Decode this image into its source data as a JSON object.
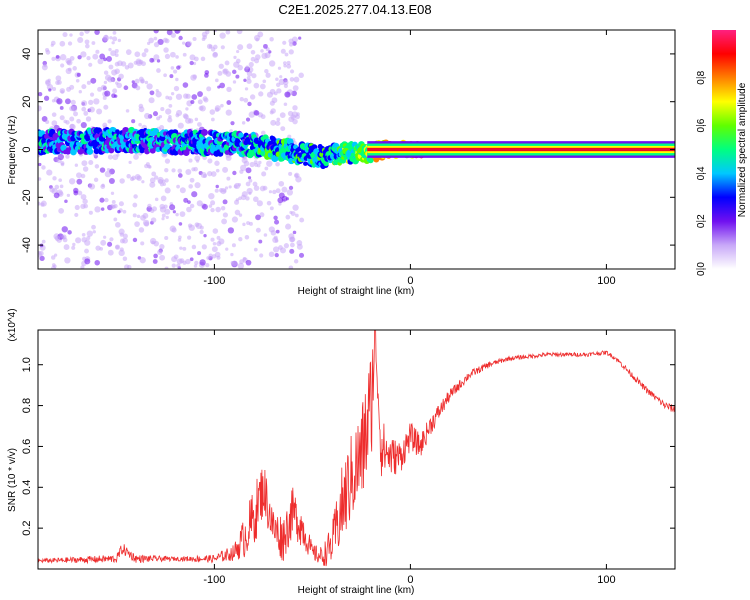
{
  "figure_title": "C2E1.2025.277.04.13.E08",
  "colors": {
    "snr_line": "#ee2d2d",
    "background": "#ffffff",
    "axis": "#000000",
    "spectrum_ridge": "#e0103a"
  },
  "chart_data": [
    {
      "type": "heatmap",
      "title": "C2E1.2025.277.04.13.E08",
      "xlabel": "Height of straight line (km)",
      "ylabel": "Frequency (Hz)",
      "xlim": [
        -190,
        135
      ],
      "ylim": [
        -50,
        50
      ],
      "xticks": [
        -100,
        0,
        100
      ],
      "xtick_labels": [
        "-100",
        "0",
        "100"
      ],
      "yticks": [
        -40,
        -20,
        0,
        20,
        40
      ],
      "ytick_labels": [
        "-40",
        "-20",
        "0",
        "20",
        "40"
      ],
      "colorbar": {
        "label": "Normalized spectral amplitude",
        "range": [
          0,
          1
        ],
        "ticks": [
          0.0,
          0.2,
          0.4,
          0.6,
          0.8
        ],
        "tick_labels": [
          "0.0",
          "0.2",
          "0.4",
          "0.6",
          "0.8"
        ],
        "colormap": [
          "#ffffff",
          "#c8a8f8",
          "#7010f0",
          "#0000ff",
          "#00c8ff",
          "#00ff80",
          "#60ff00",
          "#ffff00",
          "#ff8000",
          "#ff0000",
          "#ff2080"
        ]
      },
      "ridge": {
        "description_points_x": [
          -190,
          -150,
          -110,
          -80,
          -60,
          -45,
          -35,
          -28,
          -22,
          -15,
          -5,
          5,
          135
        ],
        "frequency_hz": [
          3,
          4,
          3,
          2,
          -1,
          -3,
          -2,
          -1,
          -2,
          0,
          0,
          0,
          0
        ],
        "amplitude": [
          0.35,
          0.35,
          0.38,
          0.4,
          0.45,
          0.45,
          0.5,
          0.55,
          0.6,
          0.7,
          0.8,
          0.9,
          0.95
        ]
      }
    },
    {
      "type": "line",
      "xlabel": "Height of straight line (km)",
      "ylabel": "SNR (10 * v/v)",
      "y_multiplier": "(x10^4)",
      "xlim": [
        -190,
        135
      ],
      "ylim": [
        0,
        1.17
      ],
      "xticks": [
        -100,
        0,
        100
      ],
      "xtick_labels": [
        "-100",
        "0",
        "100"
      ],
      "yticks": [
        0.2,
        0.4,
        0.6,
        0.8,
        1.0
      ],
      "ytick_labels": [
        "0.2",
        "0.4",
        "0.6",
        "0.8",
        "1.0"
      ],
      "series": [
        {
          "name": "SNR",
          "x": [
            -190,
            -150,
            -147,
            -140,
            -120,
            -100,
            -90,
            -85,
            -80,
            -75,
            -70,
            -65,
            -60,
            -55,
            -50,
            -45,
            -40,
            -35,
            -30,
            -25,
            -20,
            -18,
            -15,
            -10,
            -5,
            0,
            5,
            10,
            20,
            30,
            40,
            50,
            60,
            70,
            80,
            90,
            100,
            105,
            110,
            115,
            120,
            125,
            130,
            135
          ],
          "y": [
            0.04,
            0.05,
            0.1,
            0.05,
            0.05,
            0.05,
            0.08,
            0.15,
            0.25,
            0.4,
            0.2,
            0.15,
            0.28,
            0.2,
            0.08,
            0.06,
            0.12,
            0.3,
            0.45,
            0.55,
            0.8,
            1.15,
            0.6,
            0.55,
            0.55,
            0.65,
            0.6,
            0.7,
            0.85,
            0.95,
            1.0,
            1.03,
            1.04,
            1.05,
            1.05,
            1.05,
            1.06,
            1.03,
            0.98,
            0.93,
            0.88,
            0.84,
            0.8,
            0.78
          ],
          "noise_amplitude": [
            0.01,
            0.02,
            0.03,
            0.02,
            0.01,
            0.02,
            0.04,
            0.1,
            0.15,
            0.14,
            0.1,
            0.12,
            0.12,
            0.1,
            0.04,
            0.05,
            0.1,
            0.2,
            0.22,
            0.25,
            0.3,
            0.1,
            0.15,
            0.1,
            0.08,
            0.07,
            0.06,
            0.05,
            0.03,
            0.02,
            0.015,
            0.01,
            0.01,
            0.01,
            0.01,
            0.01,
            0.01,
            0.01,
            0.015,
            0.015,
            0.015,
            0.015,
            0.02,
            0.02
          ]
        }
      ]
    }
  ]
}
